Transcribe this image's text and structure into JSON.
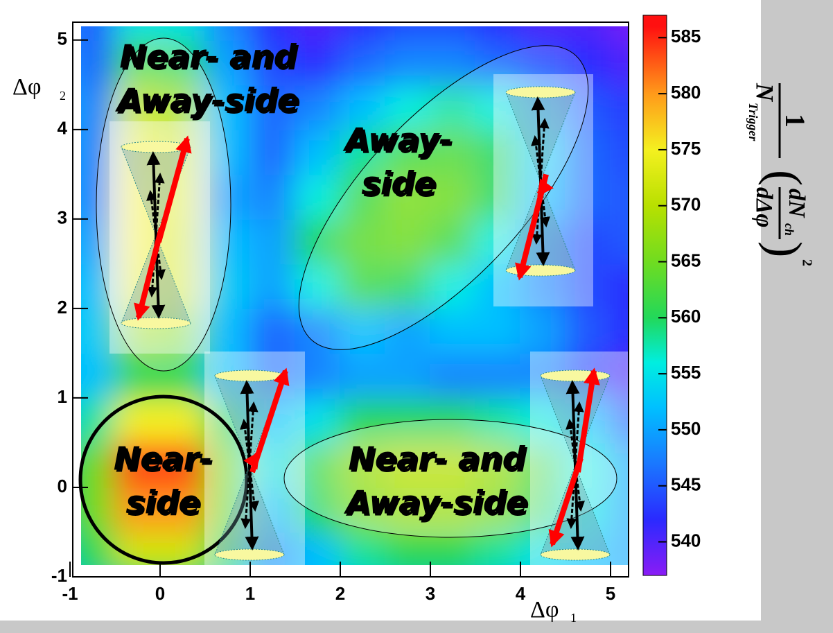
{
  "chart_data": {
    "type": "heatmap",
    "xlabel": {
      "text": "Δφ",
      "sub": "1"
    },
    "ylabel": {
      "text": "Δφ",
      "sub": "2"
    },
    "xlim": [
      -1,
      5.2
    ],
    "ylim": [
      -1,
      5.2
    ],
    "xticks": [
      -1,
      0,
      1,
      2,
      3,
      4,
      5
    ],
    "yticks": [
      -1,
      0,
      1,
      2,
      3,
      4,
      5
    ],
    "x": [
      -0.75,
      -0.25,
      0.25,
      0.75,
      1.25,
      1.75,
      2.25,
      2.75,
      3.25,
      3.75,
      4.25,
      4.75,
      5.25
    ],
    "y": [
      -0.75,
      -0.25,
      0.25,
      0.75,
      1.25,
      1.75,
      2.25,
      2.75,
      3.25,
      3.75,
      4.25,
      4.75,
      5.25
    ],
    "z": [
      [
        560,
        572,
        572,
        560,
        548,
        552,
        558,
        560,
        560,
        558,
        555,
        552,
        550
      ],
      [
        565,
        580,
        580,
        565,
        552,
        560,
        566,
        568,
        568,
        566,
        560,
        555,
        550
      ],
      [
        565,
        584,
        584,
        566,
        555,
        562,
        568,
        570,
        570,
        568,
        562,
        556,
        550
      ],
      [
        558,
        575,
        575,
        560,
        552,
        555,
        560,
        560,
        560,
        558,
        556,
        552,
        545
      ],
      [
        552,
        560,
        560,
        552,
        546,
        548,
        550,
        550,
        548,
        548,
        548,
        543,
        540
      ],
      [
        553,
        568,
        566,
        552,
        546,
        548,
        552,
        550,
        552,
        552,
        550,
        545,
        542
      ],
      [
        552,
        574,
        572,
        553,
        550,
        556,
        562,
        560,
        556,
        552,
        548,
        544,
        542
      ],
      [
        550,
        575,
        572,
        552,
        550,
        560,
        564,
        565,
        562,
        556,
        548,
        544,
        545
      ],
      [
        548,
        575,
        573,
        550,
        548,
        556,
        562,
        566,
        565,
        560,
        552,
        546,
        545
      ],
      [
        548,
        574,
        572,
        552,
        546,
        552,
        558,
        562,
        563,
        560,
        553,
        546,
        544
      ],
      [
        548,
        570,
        568,
        552,
        546,
        548,
        552,
        556,
        558,
        556,
        550,
        545,
        543
      ],
      [
        546,
        562,
        560,
        550,
        544,
        542,
        546,
        548,
        548,
        546,
        544,
        542,
        540
      ],
      [
        545,
        555,
        555,
        548,
        542,
        540,
        542,
        544,
        544,
        542,
        540,
        540,
        538
      ]
    ],
    "zlim": [
      537,
      587
    ],
    "zticks": [
      540,
      545,
      550,
      555,
      560,
      565,
      570,
      575,
      580,
      585
    ],
    "colormap": [
      [
        537,
        "#8a1cf5"
      ],
      [
        542,
        "#2a2aff"
      ],
      [
        547,
        "#1a78ff"
      ],
      [
        552,
        "#00c0ff"
      ],
      [
        556,
        "#00eee0"
      ],
      [
        560,
        "#22d85a"
      ],
      [
        565,
        "#70dc20"
      ],
      [
        570,
        "#b8e000"
      ],
      [
        575,
        "#f4f020"
      ],
      [
        580,
        "#ff9a1a"
      ],
      [
        586,
        "#ff1010"
      ]
    ],
    "zlabel": {
      "numerator": "1",
      "N": "N",
      "N_sub": "Trigger",
      "dN": "dN",
      "dN_sub": "ch",
      "den": "dΔφ",
      "power": "2"
    },
    "annotations": [
      {
        "lines": [
          "Near- and",
          "Away-side"
        ]
      },
      {
        "lines": [
          "Away-",
          "side"
        ]
      },
      {
        "lines": [
          "Near-",
          "side"
        ]
      },
      {
        "lines": [
          "Near- and",
          "Away-side"
        ]
      }
    ]
  }
}
